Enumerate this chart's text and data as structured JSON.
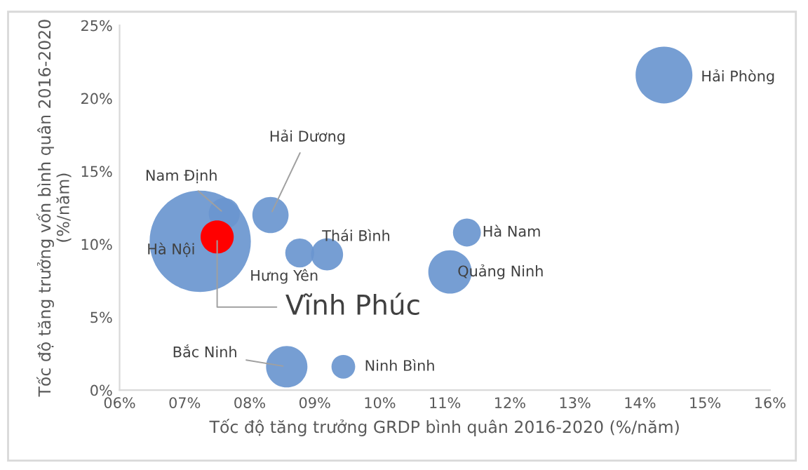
{
  "chart_data": {
    "type": "bubble",
    "xlabel": "Tốc độ tăng trưởng GRDP bình quân 2016-2020 (%/năm)",
    "ylabel": "Tốc độ tăng trưởng vốn bình quân 2016-2020\n(%/năm)",
    "xlim": [
      6,
      16
    ],
    "xticks": [
      {
        "value": 6,
        "label": "06%"
      },
      {
        "value": 7,
        "label": "07%"
      },
      {
        "value": 8,
        "label": "08%"
      },
      {
        "value": 9,
        "label": "09%"
      },
      {
        "value": 10,
        "label": "10%"
      },
      {
        "value": 11,
        "label": "11%"
      },
      {
        "value": 12,
        "label": "12%"
      },
      {
        "value": 13,
        "label": "13%"
      },
      {
        "value": 14,
        "label": "14%"
      },
      {
        "value": 15,
        "label": "15%"
      },
      {
        "value": 16,
        "label": "16%"
      }
    ],
    "ylim": [
      0,
      25
    ],
    "yticks": [
      {
        "value": 0,
        "label": "0%"
      },
      {
        "value": 5,
        "label": "5%"
      },
      {
        "value": 10,
        "label": "10%"
      },
      {
        "value": 15,
        "label": "15%"
      },
      {
        "value": 20,
        "label": "20%"
      },
      {
        "value": 25,
        "label": "25%"
      }
    ],
    "grid": false,
    "legend": false,
    "series": [
      {
        "color": "#6a96cf",
        "x": [
          7.24,
          7.61,
          8.32,
          8.77,
          9.19,
          11.34,
          11.08,
          14.37,
          8.57,
          9.44
        ],
        "values": [
          10.2,
          12.1,
          12.0,
          9.4,
          9.3,
          10.8,
          8.1,
          21.6,
          1.6,
          1.6
        ],
        "sizes": [
          1,
          0.094,
          0.128,
          0.082,
          0.1,
          0.076,
          0.184,
          0.315,
          0.167,
          0.055
        ]
      },
      {
        "name": "Vĩnh Phúc",
        "color": "#ff0000",
        "x": [
          7.5
        ],
        "values": [
          10.5
        ],
        "sizes": [
          0.107
        ]
      }
    ],
    "annotations": [
      {
        "text": "Hà Nội",
        "x": 7.24,
        "y": 10.2
      },
      {
        "text": "Nam Định",
        "x": 7.61,
        "y": 12.1
      },
      {
        "text": "Hải Dương",
        "x": 8.32,
        "y": 12.0
      },
      {
        "text": "Hưng Yên",
        "x": 8.77,
        "y": 9.4
      },
      {
        "text": "Thái Bình",
        "x": 9.19,
        "y": 9.3
      },
      {
        "text": "Hà Nam",
        "x": 11.34,
        "y": 10.8
      },
      {
        "text": "Quảng Ninh",
        "x": 11.08,
        "y": 8.1
      },
      {
        "text": "Hải Phòng",
        "x": 14.37,
        "y": 21.6
      },
      {
        "text": "Bắc Ninh",
        "x": 8.57,
        "y": 1.6
      },
      {
        "text": "Ninh Bình",
        "x": 9.44,
        "y": 1.6
      }
    ]
  }
}
